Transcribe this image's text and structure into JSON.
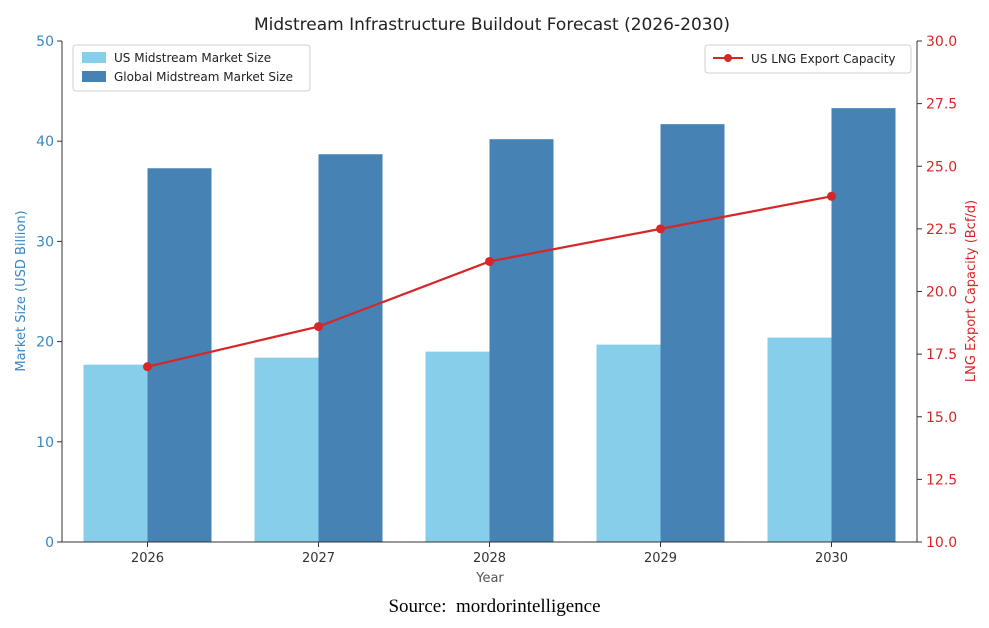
{
  "chart_data": {
    "type": "bar",
    "title": "Midstream Infrastructure Buildout Forecast (2026-2030)",
    "xlabel": "Year",
    "ylabel": "Market Size (USD Billion)",
    "ylabel_right": "LNG Export Capacity (Bcf/d)",
    "categories": [
      "2026",
      "2027",
      "2028",
      "2029",
      "2030"
    ],
    "ylim": [
      0,
      50
    ],
    "y_ticks": [
      "0",
      "10",
      "20",
      "30",
      "40",
      "50"
    ],
    "ylim_right": [
      10.0,
      30.0
    ],
    "y_ticks_right": [
      "10.0",
      "12.5",
      "15.0",
      "17.5",
      "20.0",
      "22.5",
      "25.0",
      "27.5",
      "30.0"
    ],
    "series": [
      {
        "name": "US Midstream Market Size",
        "type": "bar",
        "axis": "left",
        "color": "#87ceeb",
        "values": [
          17.7,
          18.4,
          19.0,
          19.7,
          20.4
        ]
      },
      {
        "name": "Global Midstream Market Size",
        "type": "bar",
        "axis": "left",
        "color": "#4682b4",
        "values": [
          37.3,
          38.7,
          40.2,
          41.7,
          43.3
        ]
      },
      {
        "name": "US LNG Export Capacity",
        "type": "line",
        "axis": "right",
        "color": "#d62728",
        "values": [
          17.0,
          18.6,
          21.2,
          22.5,
          23.8
        ]
      }
    ],
    "legend_left": "upper-left",
    "legend_right": "upper-right",
    "grid": false
  },
  "colors": {
    "left_axis": "#3a87c0",
    "right_axis": "#d62728",
    "axis_line": "#333333"
  },
  "source_text": "Source:  mordorintelligence"
}
